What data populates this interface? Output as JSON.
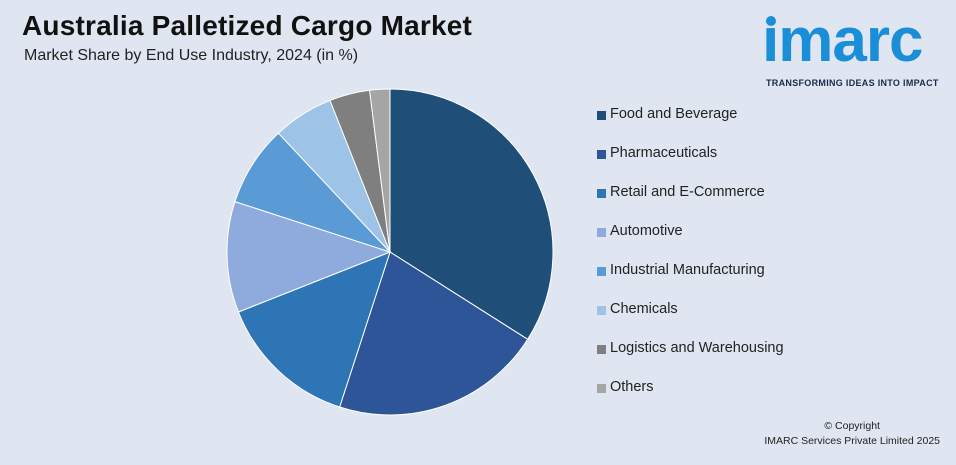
{
  "header": {
    "title": "Australia Palletized Cargo Market",
    "subtitle": "Market Share by End Use Industry, 2024 (in %)"
  },
  "logo": {
    "word": "ımarc",
    "tagline": "TRANSFORMING IDEAS INTO IMPACT",
    "color": "#1a8fd8"
  },
  "footer": {
    "line1": "© Copyright",
    "line2": "IMARC Services Private Limited 2025"
  },
  "chart_data": {
    "type": "pie",
    "legend_position": "right",
    "slices": [
      {
        "label": "Food and Beverage",
        "value": 34,
        "color": "#1f4e79"
      },
      {
        "label": "Pharmaceuticals",
        "value": 21,
        "color": "#2e5597"
      },
      {
        "label": "Retail and E-Commerce",
        "value": 14,
        "color": "#2e75b6"
      },
      {
        "label": "Automotive",
        "value": 11,
        "color": "#8faadc"
      },
      {
        "label": "Industrial Manufacturing",
        "value": 8,
        "color": "#5b9bd5"
      },
      {
        "label": "Chemicals",
        "value": 6,
        "color": "#9dc3e6"
      },
      {
        "label": "Logistics and Warehousing",
        "value": 4,
        "color": "#7f7f7f"
      },
      {
        "label": "Others",
        "value": 2,
        "color": "#a5a5a5"
      }
    ]
  }
}
